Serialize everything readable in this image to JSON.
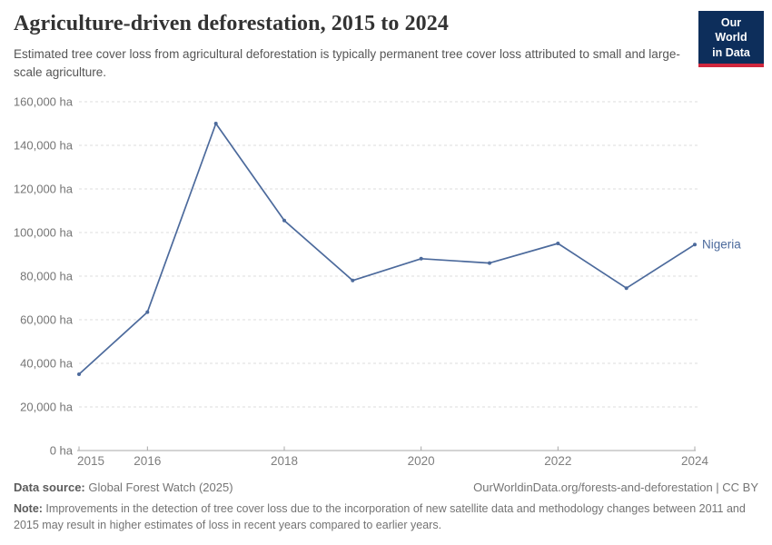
{
  "header": {
    "title": "Agriculture-driven deforestation, 2015 to 2024",
    "subtitle": "Estimated tree cover loss from agricultural deforestation is typically permanent tree cover loss attributed to small and large-scale agriculture.",
    "logo": {
      "line1": "Our World",
      "line2": "in Data",
      "bg_color": "#0d2e5b",
      "accent_color": "#d0273d"
    }
  },
  "chart_data": {
    "type": "line",
    "title": "Agriculture-driven deforestation, 2015 to 2024",
    "unit": "ha",
    "x": [
      2015,
      2016,
      2017,
      2018,
      2019,
      2020,
      2021,
      2022,
      2023,
      2024
    ],
    "series": [
      {
        "name": "Nigeria",
        "color": "#4c6a9c",
        "values": [
          35000,
          63500,
          150000,
          105500,
          78000,
          88000,
          86000,
          95000,
          74500,
          94500
        ]
      }
    ],
    "ylim": [
      0,
      160000
    ],
    "ytick_step": 20000,
    "ytick_labels": [
      "0 ha",
      "20,000 ha",
      "40,000 ha",
      "60,000 ha",
      "80,000 ha",
      "100,000 ha",
      "120,000 ha",
      "140,000 ha",
      "160,000 ha"
    ],
    "xtick_labels": [
      "2015",
      "2016",
      "2018",
      "2020",
      "2022",
      "2024"
    ],
    "grid": "horizontal dashed",
    "grid_color": "#dedede",
    "axis_color": "#a8a8a8",
    "legend_position": "end-of-line label"
  },
  "footer": {
    "data_source_label": "Data source:",
    "data_source_value": " Global Forest Watch (2025)",
    "attribution": "OurWorldinData.org/forests-and-deforestation | CC BY",
    "note_label": "Note:",
    "note_text": " Improvements in the detection of tree cover loss due to the incorporation of new satellite data and methodology changes between 2011 and 2015 may result in higher estimates of loss in recent years compared to earlier years."
  }
}
